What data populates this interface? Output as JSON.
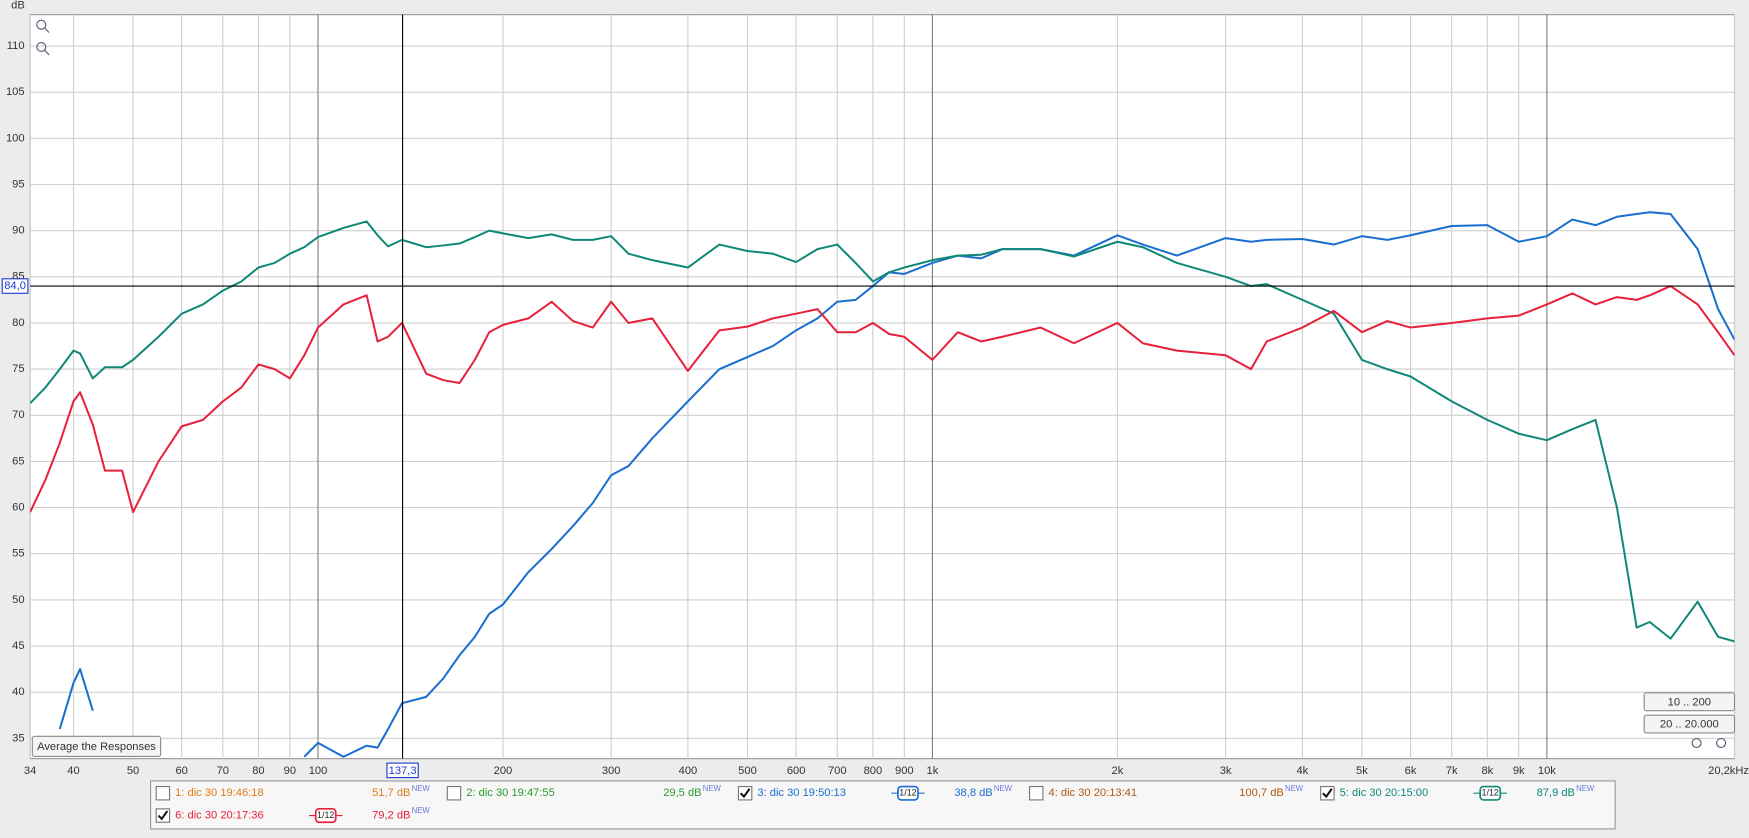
{
  "chart_data": {
    "type": "line",
    "y_label": "dB",
    "xlim": [
      34,
      20200
    ],
    "log_x": true,
    "ylim": [
      32.8,
      113.4
    ],
    "grid": true,
    "xticks": [
      34,
      40,
      50,
      60,
      70,
      80,
      90,
      100,
      200,
      300,
      400,
      500,
      600,
      700,
      800,
      900,
      {
        "value": 1000,
        "label": "1k"
      },
      {
        "value": 2000,
        "label": "2k"
      },
      {
        "value": 3000,
        "label": "3k"
      },
      {
        "value": 4000,
        "label": "4k"
      },
      {
        "value": 5000,
        "label": "5k"
      },
      {
        "value": 6000,
        "label": "6k"
      },
      {
        "value": 7000,
        "label": "7k"
      },
      {
        "value": 8000,
        "label": "8k"
      },
      {
        "value": 9000,
        "label": "9k"
      },
      {
        "value": 10000,
        "label": "10k"
      },
      {
        "value": 20200,
        "label": "20,2kHz"
      }
    ],
    "yticks": [
      35,
      40,
      45,
      50,
      55,
      60,
      65,
      70,
      75,
      80,
      85,
      90,
      95,
      100,
      105,
      110
    ],
    "cursor": {
      "x": {
        "value": 137.3,
        "label": "137,3"
      },
      "y": {
        "value": 84.0,
        "label": "84,0"
      }
    },
    "x": [
      34,
      36,
      38,
      40,
      41,
      43,
      45,
      48,
      50,
      55,
      60,
      65,
      70,
      75,
      80,
      85,
      90,
      95,
      100,
      110,
      120,
      125,
      130,
      137,
      150,
      160,
      170,
      180,
      190,
      200,
      220,
      240,
      260,
      280,
      300,
      320,
      350,
      400,
      450,
      500,
      550,
      600,
      650,
      700,
      750,
      800,
      850,
      900,
      1000,
      1100,
      1200,
      1300,
      1500,
      1700,
      2000,
      2200,
      2500,
      3000,
      3300,
      3500,
      4000,
      4500,
      5000,
      5500,
      6000,
      7000,
      8000,
      9000,
      10000,
      11000,
      12000,
      13000,
      14000,
      14700,
      15900,
      17600,
      19000,
      20200
    ],
    "series": [
      {
        "name": "1: dic 30 19:46:18",
        "color": "#e07a1a",
        "checked": false,
        "level": {
          "value": 51.7,
          "label": "51,7 dB"
        },
        "badge": "NEW"
      },
      {
        "name": "2: dic 30 19:47:55",
        "color": "#2a9a2a",
        "checked": false,
        "level": {
          "value": 29.5,
          "label": "29,5 dB"
        },
        "badge": "NEW"
      },
      {
        "name": "3: dic 30 19:50:13",
        "color": "#1a6ed0",
        "checked": true,
        "smoothing": "1/12",
        "level": {
          "value": 38.8,
          "label": "38,8 dB"
        },
        "badge": "NEW",
        "values": [
          null,
          null,
          36,
          41,
          42.5,
          38,
          null,
          null,
          null,
          null,
          null,
          null,
          null,
          null,
          null,
          null,
          null,
          33,
          34.5,
          33,
          34.2,
          34,
          36,
          38.8,
          39.5,
          41.5,
          44,
          46,
          48.5,
          49.5,
          53,
          55.5,
          58,
          60.5,
          63.5,
          64.5,
          67.5,
          71.5,
          75,
          76.3,
          77.5,
          79.2,
          80.5,
          82.3,
          82.5,
          84,
          85.5,
          85.3,
          86.5,
          87.3,
          87,
          88,
          88,
          87.3,
          89.5,
          88.5,
          87.3,
          89.2,
          88.8,
          89,
          89.1,
          88.5,
          89.4,
          89,
          89.5,
          90.5,
          90.6,
          88.8,
          89.4,
          91.2,
          90.6,
          91.5,
          91.8,
          92,
          91.8,
          88,
          81.5,
          78.2
        ]
      },
      {
        "name": "4: dic 30 20:13:41",
        "color": "#b05a10",
        "checked": false,
        "level": {
          "value": 100.7,
          "label": "100,7 dB"
        },
        "badge": "NEW"
      },
      {
        "name": "5: dic 30 20:15:00",
        "color": "#108878",
        "checked": true,
        "smoothing": "1/12",
        "level": {
          "value": 87.9,
          "label": "87,9 dB"
        },
        "badge": "NEW",
        "values": [
          71.3,
          73,
          75,
          77,
          76.7,
          74,
          75.2,
          75.2,
          76,
          78.5,
          81,
          82,
          83.5,
          84.5,
          86,
          86.5,
          87.5,
          88.2,
          89.3,
          90.3,
          91,
          89.5,
          88.3,
          89,
          88.2,
          88.4,
          88.6,
          89.3,
          90,
          89.7,
          89.2,
          89.6,
          89,
          89,
          89.4,
          87.5,
          86.8,
          86,
          88.5,
          87.8,
          87.5,
          86.6,
          88,
          88.5,
          86.5,
          84.5,
          85.5,
          86,
          86.8,
          87.3,
          87.4,
          88,
          88,
          87.2,
          88.8,
          88.2,
          86.5,
          85,
          84,
          84.2,
          82.5,
          81,
          76,
          75,
          74.2,
          71.5,
          69.5,
          68,
          67.3,
          68.5,
          69.5,
          60,
          47,
          47.6,
          45.8,
          49.8,
          46,
          45.5
        ]
      },
      {
        "name": "6: dic 30 20:17:36",
        "color": "#e8203c",
        "checked": true,
        "smoothing": "1/12",
        "level": {
          "value": 79.2,
          "label": "79,2 dB"
        },
        "badge": "NEW",
        "values": [
          59.5,
          63,
          67,
          71.5,
          72.5,
          69,
          64,
          64,
          59.5,
          65,
          68.8,
          69.5,
          71.5,
          73,
          75.5,
          75,
          74,
          76.5,
          79.5,
          82,
          83,
          78,
          78.5,
          80,
          74.5,
          73.8,
          73.5,
          76,
          79,
          79.8,
          80.5,
          82.3,
          80.2,
          79.5,
          82.3,
          80,
          80.5,
          74.8,
          79.2,
          79.6,
          80.5,
          81,
          81.5,
          79,
          79,
          80,
          78.8,
          78.5,
          76,
          79,
          78,
          78.5,
          79.5,
          77.8,
          80,
          77.8,
          77,
          76.5,
          75,
          78,
          79.5,
          81.3,
          79,
          80.2,
          79.5,
          80,
          80.5,
          80.8,
          82,
          83.2,
          82,
          82.8,
          82.5,
          83,
          84,
          82,
          79,
          76.5
        ]
      }
    ],
    "controls": {
      "average": "Average the Responses",
      "range_low": "10 .. 200",
      "range_full": "20 .. 20.000"
    }
  }
}
